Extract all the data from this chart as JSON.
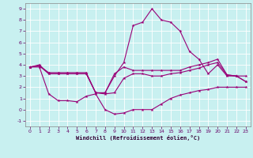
{
  "xlabel": "Windchill (Refroidissement éolien,°C)",
  "background_color": "#c8f0f0",
  "grid_color": "#ffffff",
  "line_color": "#990077",
  "xlim": [
    -0.5,
    23.5
  ],
  "ylim": [
    -1.5,
    9.5
  ],
  "xticks": [
    0,
    1,
    2,
    3,
    4,
    5,
    6,
    7,
    8,
    9,
    10,
    11,
    12,
    13,
    14,
    15,
    16,
    17,
    18,
    19,
    20,
    21,
    22,
    23
  ],
  "yticks": [
    -1,
    0,
    1,
    2,
    3,
    4,
    5,
    6,
    7,
    8,
    9
  ],
  "line1_x": [
    0,
    1,
    2,
    3,
    4,
    5,
    6,
    7,
    8,
    9,
    10,
    11,
    12,
    13,
    14,
    15,
    16,
    17,
    18,
    19,
    20,
    21,
    22,
    23
  ],
  "line1_y": [
    3.8,
    4.0,
    3.2,
    3.2,
    3.2,
    3.2,
    3.2,
    1.5,
    1.5,
    3.0,
    4.2,
    7.5,
    7.8,
    9.0,
    8.0,
    7.8,
    7.0,
    5.2,
    4.5,
    3.2,
    4.0,
    3.0,
    3.0,
    3.0
  ],
  "line2_x": [
    0,
    1,
    2,
    3,
    4,
    5,
    6,
    7,
    8,
    9,
    10,
    11,
    12,
    13,
    14,
    15,
    16,
    17,
    18,
    19,
    20,
    21,
    22,
    23
  ],
  "line2_y": [
    3.8,
    3.9,
    3.3,
    3.3,
    3.3,
    3.3,
    3.3,
    1.5,
    1.5,
    3.2,
    3.8,
    3.5,
    3.5,
    3.5,
    3.5,
    3.5,
    3.5,
    3.8,
    4.0,
    4.2,
    4.5,
    3.1,
    3.0,
    2.5
  ],
  "line3_x": [
    0,
    1,
    2,
    3,
    4,
    5,
    6,
    7,
    8,
    9,
    10,
    11,
    12,
    13,
    14,
    15,
    16,
    17,
    18,
    19,
    20,
    21,
    22,
    23
  ],
  "line3_y": [
    3.8,
    3.9,
    3.2,
    3.2,
    3.2,
    3.2,
    3.2,
    1.5,
    1.4,
    1.5,
    2.8,
    3.2,
    3.2,
    3.0,
    3.0,
    3.2,
    3.3,
    3.5,
    3.7,
    4.0,
    4.2,
    3.1,
    3.0,
    2.5
  ],
  "line4_x": [
    0,
    1,
    2,
    3,
    4,
    5,
    6,
    7,
    8,
    9,
    10,
    11,
    12,
    13,
    14,
    15,
    16,
    17,
    18,
    19,
    20,
    21,
    22,
    23
  ],
  "line4_y": [
    3.8,
    3.8,
    1.4,
    0.8,
    0.8,
    0.7,
    1.2,
    1.4,
    0.0,
    -0.4,
    -0.3,
    0.0,
    0.0,
    0.0,
    0.5,
    1.0,
    1.3,
    1.5,
    1.7,
    1.8,
    2.0,
    2.0,
    2.0,
    2.0
  ]
}
